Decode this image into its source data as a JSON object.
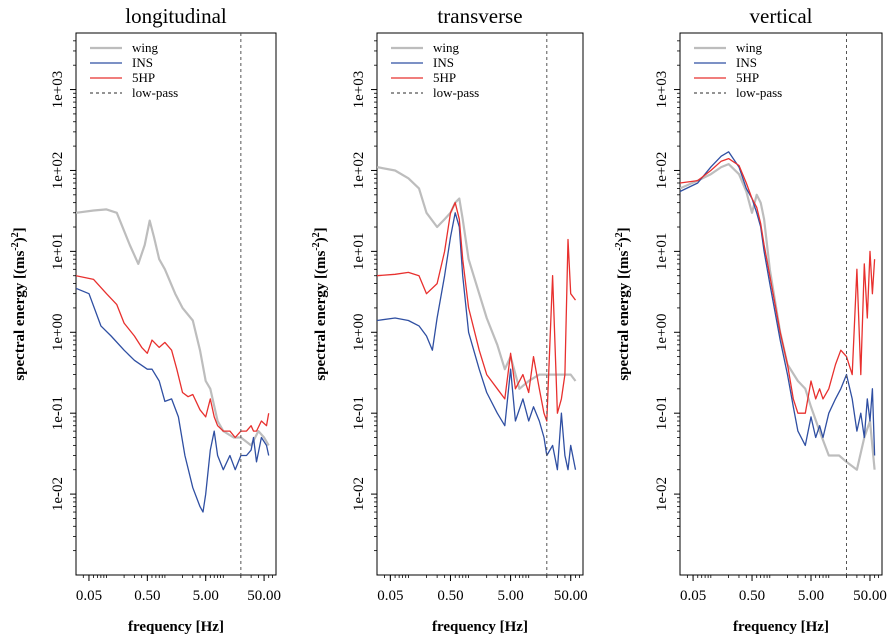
{
  "chart_data": [
    {
      "type": "line",
      "title": "longitudinal",
      "xlabel": "frequency [Hz]",
      "ylabel": "spectral energy [(ms-2)2]",
      "x_scale": "log",
      "y_scale": "log",
      "xlim": [
        0.03,
        80
      ],
      "ylim": [
        0.001,
        5000
      ],
      "x_ticks": [
        "0.05",
        "0.50",
        "5.00",
        "50.00"
      ],
      "y_ticks": [
        "1e-02",
        "1e-01",
        "1e+00",
        "1e+01",
        "1e+02",
        "1e+03"
      ],
      "lowpass_hz": 20,
      "legend": [
        "wing",
        "INS",
        "5HP",
        "low-pass"
      ],
      "legend_position": "top-left",
      "series": [
        {
          "name": "wing",
          "color": "#bdbdbd",
          "x": [
            0.03,
            0.06,
            0.1,
            0.15,
            0.25,
            0.35,
            0.45,
            0.55,
            0.65,
            0.8,
            1.0,
            1.5,
            2.0,
            3.0,
            4.0,
            5.0,
            6.0,
            8.0,
            10,
            15,
            20,
            30,
            40,
            50,
            60
          ],
          "y": [
            30,
            32,
            33,
            30,
            12,
            7,
            12,
            24,
            15,
            8,
            6,
            3,
            2,
            1.4,
            0.6,
            0.25,
            0.2,
            0.08,
            0.06,
            0.05,
            0.05,
            0.04,
            0.06,
            0.05,
            0.04
          ]
        },
        {
          "name": "INS",
          "color": "#2f4fa2",
          "x": [
            0.03,
            0.05,
            0.08,
            0.12,
            0.2,
            0.3,
            0.5,
            0.6,
            0.8,
            1.0,
            1.3,
            1.7,
            2.2,
            3.0,
            4.0,
            4.5,
            5.0,
            6.0,
            7.0,
            8.0,
            10,
            13,
            16,
            20,
            25,
            30,
            33,
            37,
            45,
            55,
            60
          ],
          "y": [
            3.5,
            3,
            1.2,
            0.9,
            0.6,
            0.45,
            0.35,
            0.35,
            0.25,
            0.14,
            0.15,
            0.09,
            0.03,
            0.012,
            0.007,
            0.006,
            0.01,
            0.035,
            0.06,
            0.03,
            0.02,
            0.03,
            0.02,
            0.03,
            0.03,
            0.035,
            0.05,
            0.025,
            0.05,
            0.04,
            0.03
          ]
        },
        {
          "name": "5HP",
          "color": "#e8302e",
          "x": [
            0.03,
            0.06,
            0.1,
            0.15,
            0.2,
            0.3,
            0.4,
            0.5,
            0.6,
            0.8,
            1.0,
            1.3,
            1.6,
            2.0,
            2.5,
            3.0,
            4.0,
            5.0,
            6.0,
            7.0,
            8.0,
            10,
            13,
            16,
            20,
            25,
            30,
            33,
            37,
            45,
            55,
            60
          ],
          "y": [
            5,
            4.5,
            3,
            2.2,
            1.3,
            0.9,
            0.65,
            0.55,
            0.8,
            0.65,
            0.75,
            0.6,
            0.35,
            0.18,
            0.16,
            0.17,
            0.11,
            0.09,
            0.15,
            0.09,
            0.07,
            0.06,
            0.06,
            0.05,
            0.06,
            0.06,
            0.07,
            0.06,
            0.06,
            0.08,
            0.07,
            0.1
          ]
        }
      ]
    },
    {
      "type": "line",
      "title": "transverse",
      "xlabel": "frequency [Hz]",
      "ylabel": "spectral energy [(ms-2)2]",
      "x_scale": "log",
      "y_scale": "log",
      "xlim": [
        0.03,
        80
      ],
      "ylim": [
        0.001,
        5000
      ],
      "x_ticks": [
        "0.05",
        "0.50",
        "5.00",
        "50.00"
      ],
      "y_ticks": [
        "1e-02",
        "1e-01",
        "1e+00",
        "1e+01",
        "1e+02",
        "1e+03"
      ],
      "lowpass_hz": 20,
      "legend": [
        "wing",
        "INS",
        "5HP",
        "low-pass"
      ],
      "legend_position": "top-left",
      "series": [
        {
          "name": "wing",
          "color": "#bdbdbd",
          "x": [
            0.03,
            0.06,
            0.1,
            0.15,
            0.2,
            0.3,
            0.4,
            0.5,
            0.6,
            0.7,
            0.8,
            1.0,
            1.5,
            2.0,
            3.0,
            4.0,
            5.0,
            7.0,
            10,
            15,
            20,
            30,
            40,
            50,
            60
          ],
          "y": [
            110,
            100,
            80,
            60,
            30,
            20,
            25,
            30,
            40,
            45,
            25,
            8,
            3,
            1.5,
            0.7,
            0.35,
            0.5,
            0.2,
            0.25,
            0.3,
            0.3,
            0.3,
            0.3,
            0.3,
            0.25
          ]
        },
        {
          "name": "INS",
          "color": "#2f4fa2",
          "x": [
            0.03,
            0.06,
            0.1,
            0.15,
            0.2,
            0.25,
            0.3,
            0.4,
            0.5,
            0.6,
            0.7,
            0.8,
            1.0,
            1.5,
            2.0,
            3.0,
            4.0,
            5.0,
            6.0,
            8.0,
            10,
            12,
            15,
            18,
            20,
            25,
            30,
            35,
            40,
            45,
            50,
            60
          ],
          "y": [
            1.4,
            1.5,
            1.4,
            1.2,
            0.9,
            0.6,
            1.5,
            5,
            15,
            30,
            20,
            5,
            1,
            0.35,
            0.18,
            0.1,
            0.07,
            0.35,
            0.08,
            0.15,
            0.08,
            0.12,
            0.08,
            0.05,
            0.03,
            0.04,
            0.02,
            0.1,
            0.03,
            0.02,
            0.04,
            0.02
          ]
        },
        {
          "name": "5HP",
          "color": "#e8302e",
          "x": [
            0.03,
            0.06,
            0.1,
            0.15,
            0.2,
            0.3,
            0.4,
            0.5,
            0.6,
            0.7,
            0.8,
            1.0,
            1.5,
            2.0,
            3.0,
            4.0,
            5.0,
            6.0,
            8.0,
            10,
            12,
            15,
            18,
            20,
            25,
            30,
            35,
            40,
            45,
            50,
            60
          ],
          "y": [
            5,
            5.2,
            5.5,
            5,
            3,
            4,
            10,
            30,
            40,
            25,
            8,
            2,
            0.6,
            0.3,
            0.2,
            0.15,
            0.55,
            0.2,
            0.3,
            0.18,
            0.5,
            0.2,
            0.1,
            0.08,
            5,
            0.1,
            0.15,
            0.3,
            14,
            3,
            2.5
          ]
        }
      ]
    },
    {
      "type": "line",
      "title": "vertical",
      "xlabel": "frequency [Hz]",
      "ylabel": "spectral energy [(ms-2)2]",
      "x_scale": "log",
      "y_scale": "log",
      "xlim": [
        0.03,
        80
      ],
      "ylim": [
        0.001,
        5000
      ],
      "x_ticks": [
        "0.05",
        "0.50",
        "5.00",
        "50.00"
      ],
      "y_ticks": [
        "1e-02",
        "1e-01",
        "1e+00",
        "1e+01",
        "1e+02",
        "1e+03"
      ],
      "lowpass_hz": 20,
      "legend": [
        "wing",
        "INS",
        "5HP",
        "low-pass"
      ],
      "legend_position": "top-left",
      "series": [
        {
          "name": "wing",
          "color": "#bdbdbd",
          "x": [
            0.03,
            0.06,
            0.1,
            0.15,
            0.2,
            0.3,
            0.4,
            0.5,
            0.6,
            0.7,
            0.8,
            1.0,
            1.5,
            2.0,
            3.0,
            4.0,
            5.0,
            7.0,
            10,
            15,
            20,
            30,
            40,
            50,
            60
          ],
          "y": [
            60,
            75,
            90,
            110,
            120,
            90,
            55,
            30,
            50,
            40,
            25,
            6,
            1,
            0.4,
            0.25,
            0.2,
            0.12,
            0.06,
            0.03,
            0.03,
            0.025,
            0.02,
            0.05,
            0.08,
            0.02
          ]
        },
        {
          "name": "INS",
          "color": "#2f4fa2",
          "x": [
            0.03,
            0.06,
            0.1,
            0.15,
            0.2,
            0.3,
            0.4,
            0.5,
            0.6,
            0.7,
            0.8,
            1.0,
            1.5,
            2.0,
            2.5,
            3.0,
            4.0,
            5.0,
            6.0,
            7.0,
            8.0,
            10,
            13,
            16,
            20,
            25,
            30,
            35,
            40,
            45,
            50,
            55,
            60
          ],
          "y": [
            55,
            70,
            110,
            150,
            170,
            110,
            60,
            45,
            30,
            20,
            10,
            4,
            0.8,
            0.3,
            0.12,
            0.06,
            0.04,
            0.09,
            0.05,
            0.07,
            0.05,
            0.1,
            0.15,
            0.2,
            0.3,
            0.15,
            0.06,
            0.1,
            0.05,
            0.15,
            0.08,
            0.2,
            0.03
          ]
        },
        {
          "name": "5HP",
          "color": "#e8302e",
          "x": [
            0.03,
            0.06,
            0.1,
            0.15,
            0.2,
            0.3,
            0.4,
            0.5,
            0.6,
            0.7,
            0.8,
            1.0,
            1.5,
            2.0,
            2.5,
            3.0,
            4.0,
            5.0,
            6.0,
            7.0,
            8.0,
            10,
            13,
            16,
            20,
            25,
            30,
            35,
            40,
            45,
            50,
            55,
            60
          ],
          "y": [
            70,
            75,
            100,
            130,
            140,
            115,
            70,
            45,
            35,
            22,
            12,
            5,
            1,
            0.4,
            0.15,
            0.1,
            0.1,
            0.25,
            0.15,
            0.2,
            0.15,
            0.2,
            0.4,
            0.6,
            0.5,
            0.3,
            6,
            0.3,
            7,
            1.5,
            10,
            3,
            8
          ]
        }
      ]
    }
  ]
}
